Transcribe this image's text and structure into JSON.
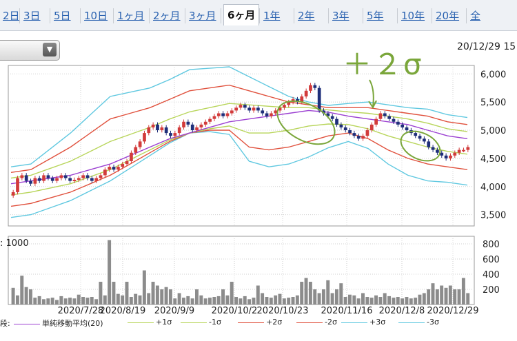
{
  "tabs": [
    {
      "label": "2日",
      "active": false
    },
    {
      "label": "3日",
      "active": false
    },
    {
      "label": "5日",
      "active": false
    },
    {
      "label": "10日",
      "active": false
    },
    {
      "label": "1ヶ月",
      "active": false
    },
    {
      "label": "2ヶ月",
      "active": false
    },
    {
      "label": "3ヶ月",
      "active": false
    },
    {
      "label": "6ヶ月",
      "active": true
    },
    {
      "label": "1年",
      "active": false
    },
    {
      "label": "2年",
      "active": false
    },
    {
      "label": "3年",
      "active": false
    },
    {
      "label": "5年",
      "active": false
    },
    {
      "label": "10年",
      "active": false
    },
    {
      "label": "20年",
      "active": false
    },
    {
      "label": "全",
      "active": false
    }
  ],
  "datetime": "20/12/29 15",
  "annotation_text": "＋２σ",
  "colors": {
    "up": "#d23b3b",
    "down": "#1f2f7a",
    "sma": "#9b3fd1",
    "sigma1": "#b8d55a",
    "sigma2": "#e0503c",
    "sigma3": "#5fc8e0",
    "volume": "#8c8c8c",
    "annotation": "#7aa63a"
  },
  "chart_data": [
    {
      "type": "candlestick",
      "title": "",
      "ylim": [
        3300,
        6150
      ],
      "yticks": [
        3500,
        4000,
        4500,
        5000,
        5500,
        6000
      ],
      "ytick_labels": [
        "3,500",
        "4,000",
        "4,500",
        "5,000",
        "5,500",
        "6,000"
      ],
      "xtick_labels": [
        "2020/7/28",
        "2020/8/19",
        "2020/9/9",
        "2020/10/2",
        "2020/10/23",
        "2020/11/16",
        "2020/12/8",
        "2020/12/29"
      ],
      "legend_position": "bottom",
      "legend_prefix": "段:",
      "legend": [
        {
          "name": "単純移動平均(20)",
          "color": "#9b3fd1"
        },
        {
          "name": "+1σ",
          "color": "#b8d55a"
        },
        {
          "name": "-1σ",
          "color": "#b8d55a"
        },
        {
          "name": "+2σ",
          "color": "#e0503c"
        },
        {
          "name": "-2σ",
          "color": "#e0503c"
        },
        {
          "name": "+3σ",
          "color": "#5fc8e0"
        },
        {
          "name": "-3σ",
          "color": "#5fc8e0"
        }
      ],
      "close_approx": [
        3900,
        4150,
        4200,
        4100,
        4050,
        4150,
        4100,
        4200,
        4150,
        4100,
        4150,
        4200,
        4150,
        4100,
        4120,
        4150,
        4200,
        4150,
        4100,
        4150,
        4200,
        4300,
        4350,
        4300,
        4350,
        4400,
        4450,
        4600,
        4700,
        4800,
        4950,
        5050,
        5100,
        5000,
        5050,
        4950,
        4900,
        4950,
        5050,
        5150,
        5100,
        5000,
        5050,
        5100,
        5150,
        5200,
        5250,
        5300,
        5250,
        5300,
        5350,
        5400,
        5450,
        5400,
        5350,
        5400,
        5350,
        5300,
        5250,
        5300,
        5350,
        5400,
        5450,
        5500,
        5550,
        5500,
        5600,
        5700,
        5800,
        5750,
        5350,
        5300,
        5250,
        5200,
        5100,
        5050,
        5000,
        4950,
        4900,
        4850,
        4900,
        5000,
        5100,
        5200,
        5300,
        5250,
        5200,
        5150,
        5100,
        5050,
        5000,
        4950,
        4900,
        4850,
        4800,
        4700,
        4650,
        4600,
        4550,
        4500,
        4550,
        4600,
        4650,
        4650,
        4700
      ],
      "sma_approx": [
        4050,
        4100,
        4150,
        4200,
        4300,
        4400,
        4550,
        4700,
        4850,
        4950,
        5050,
        5150,
        5200,
        5250,
        5300,
        5350,
        5320,
        5250,
        5200,
        5150,
        5100,
        5000,
        4900,
        4850
      ],
      "upper2_approx": [
        4250,
        4300,
        4500,
        4700,
        4950,
        5200,
        5300,
        5400,
        5550,
        5700,
        5750,
        5800,
        5700,
        5600,
        5500,
        5450,
        5400,
        5400,
        5400,
        5350,
        5300,
        5250,
        5150,
        5100
      ],
      "lower2_approx": [
        3650,
        3700,
        3800,
        3900,
        4050,
        4200,
        4400,
        4600,
        4800,
        4950,
        5000,
        5000,
        4700,
        4650,
        4700,
        4800,
        4900,
        4950,
        4850,
        4650,
        4500,
        4400,
        4350,
        4300
      ]
    },
    {
      "type": "bar",
      "title": "",
      "label": ": 1000",
      "ylim": [
        0,
        900
      ],
      "yticks": [
        200,
        400,
        600,
        800
      ],
      "ytick_labels": [
        "200",
        "400",
        "600",
        "800"
      ],
      "values": [
        220,
        120,
        380,
        230,
        200,
        90,
        110,
        70,
        80,
        90,
        60,
        110,
        80,
        90,
        80,
        130,
        100,
        90,
        100,
        70,
        300,
        120,
        850,
        300,
        140,
        120,
        300,
        100,
        140,
        120,
        450,
        150,
        300,
        250,
        200,
        230,
        200,
        80,
        150,
        90,
        110,
        80,
        200,
        120,
        80,
        90,
        100,
        110,
        200,
        120,
        300,
        100,
        80,
        110,
        70,
        90,
        250,
        150,
        100,
        90,
        120,
        140,
        80,
        90,
        100,
        120,
        300,
        350,
        300,
        200,
        150,
        200,
        320,
        150,
        200,
        280,
        100,
        130,
        120,
        80,
        150,
        100,
        90,
        120,
        100,
        150,
        110,
        90,
        100,
        80,
        100,
        80,
        90,
        130,
        150,
        200,
        280,
        200,
        250,
        220,
        250,
        200,
        200,
        350,
        150
      ]
    }
  ]
}
